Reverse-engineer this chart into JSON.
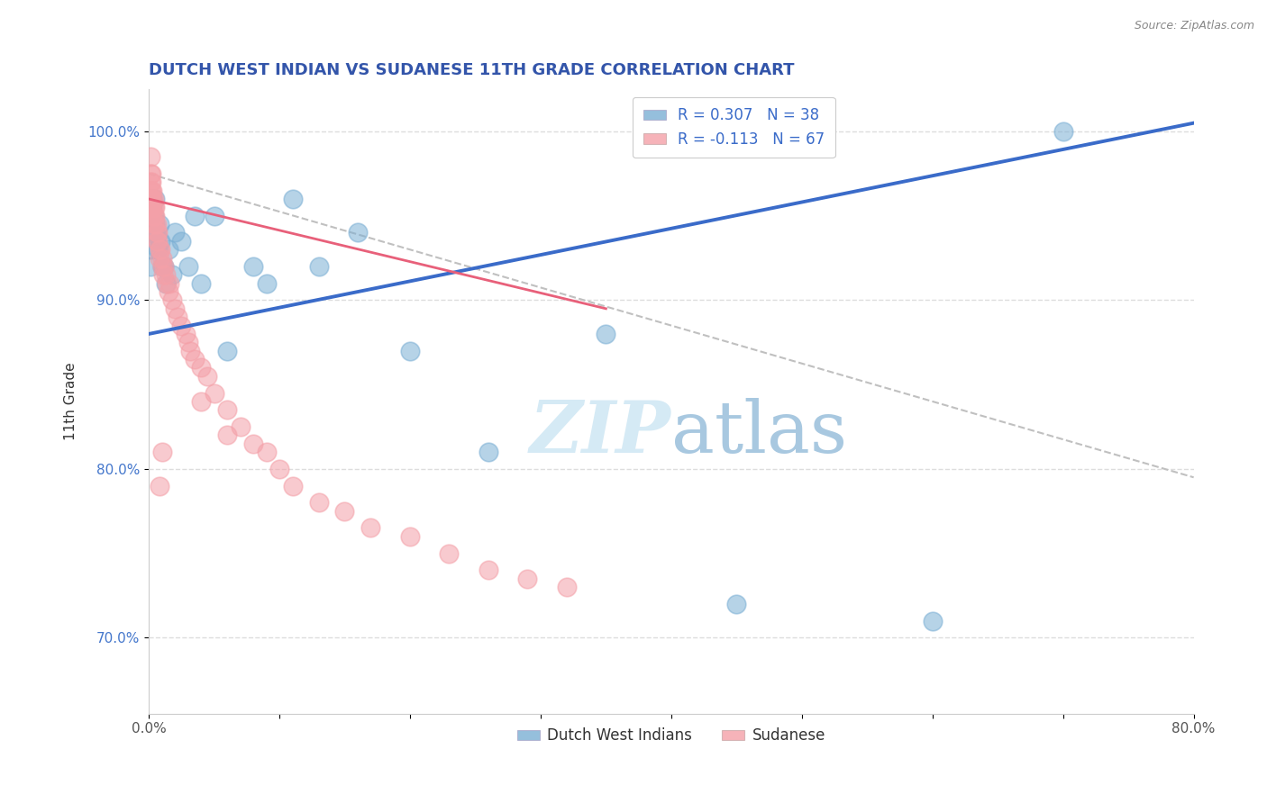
{
  "title": "DUTCH WEST INDIAN VS SUDANESE 11TH GRADE CORRELATION CHART",
  "source_text": "Source: ZipAtlas.com",
  "ylabel": "11th Grade",
  "xlim": [
    0.0,
    0.8
  ],
  "ylim": [
    0.655,
    1.025
  ],
  "xticks": [
    0.0,
    0.1,
    0.2,
    0.3,
    0.4,
    0.5,
    0.6,
    0.7,
    0.8
  ],
  "yticks": [
    0.7,
    0.8,
    0.9,
    1.0
  ],
  "yticklabels": [
    "70.0%",
    "80.0%",
    "90.0%",
    "100.0%"
  ],
  "legend_blue_label": "R = 0.307   N = 38",
  "legend_pink_label": "R = -0.113   N = 67",
  "legend_bottom_blue": "Dutch West Indians",
  "legend_bottom_pink": "Sudanese",
  "blue_color": "#7BAFD4",
  "pink_color": "#F4A0A8",
  "blue_trend_color": "#3A6BC9",
  "pink_trend_color": "#E8607A",
  "gray_dash_color": "#C0C0C0",
  "watermark_color": "#D5EAF5",
  "background_color": "#FFFFFF",
  "grid_color": "#DDDDDD",
  "title_color": "#3355AA",
  "yaxis_color": "#4477CC",
  "blue_x": [
    0.001,
    0.001,
    0.002,
    0.002,
    0.003,
    0.003,
    0.004,
    0.004,
    0.005,
    0.005,
    0.005,
    0.006,
    0.007,
    0.008,
    0.009,
    0.01,
    0.012,
    0.013,
    0.015,
    0.018,
    0.02,
    0.025,
    0.03,
    0.035,
    0.04,
    0.05,
    0.06,
    0.08,
    0.09,
    0.11,
    0.13,
    0.16,
    0.2,
    0.26,
    0.35,
    0.45,
    0.6,
    0.7
  ],
  "blue_y": [
    0.93,
    0.92,
    0.96,
    0.955,
    0.96,
    0.955,
    0.95,
    0.945,
    0.96,
    0.945,
    0.94,
    0.938,
    0.93,
    0.945,
    0.935,
    0.92,
    0.92,
    0.91,
    0.93,
    0.915,
    0.94,
    0.935,
    0.92,
    0.95,
    0.91,
    0.95,
    0.87,
    0.92,
    0.91,
    0.96,
    0.92,
    0.94,
    0.87,
    0.81,
    0.88,
    0.72,
    0.71,
    1.0
  ],
  "pink_x": [
    0.001,
    0.001,
    0.001,
    0.001,
    0.001,
    0.001,
    0.002,
    0.002,
    0.002,
    0.002,
    0.002,
    0.003,
    0.003,
    0.003,
    0.003,
    0.004,
    0.004,
    0.004,
    0.004,
    0.005,
    0.005,
    0.005,
    0.006,
    0.006,
    0.006,
    0.007,
    0.007,
    0.008,
    0.008,
    0.009,
    0.01,
    0.01,
    0.011,
    0.012,
    0.013,
    0.014,
    0.015,
    0.016,
    0.018,
    0.02,
    0.022,
    0.025,
    0.028,
    0.03,
    0.032,
    0.035,
    0.04,
    0.045,
    0.05,
    0.06,
    0.07,
    0.08,
    0.09,
    0.1,
    0.11,
    0.13,
    0.15,
    0.17,
    0.2,
    0.23,
    0.26,
    0.29,
    0.32,
    0.04,
    0.06,
    0.01,
    0.008
  ],
  "pink_y": [
    0.985,
    0.975,
    0.97,
    0.965,
    0.96,
    0.955,
    0.975,
    0.97,
    0.965,
    0.96,
    0.955,
    0.965,
    0.96,
    0.955,
    0.95,
    0.96,
    0.955,
    0.95,
    0.945,
    0.955,
    0.95,
    0.945,
    0.945,
    0.94,
    0.935,
    0.94,
    0.935,
    0.93,
    0.925,
    0.93,
    0.925,
    0.92,
    0.915,
    0.92,
    0.915,
    0.91,
    0.905,
    0.91,
    0.9,
    0.895,
    0.89,
    0.885,
    0.88,
    0.875,
    0.87,
    0.865,
    0.86,
    0.855,
    0.845,
    0.835,
    0.825,
    0.815,
    0.81,
    0.8,
    0.79,
    0.78,
    0.775,
    0.765,
    0.76,
    0.75,
    0.74,
    0.735,
    0.73,
    0.84,
    0.82,
    0.81,
    0.79
  ],
  "blue_trend_x0": 0.0,
  "blue_trend_y0": 0.88,
  "blue_trend_x1": 0.8,
  "blue_trend_y1": 1.005,
  "pink_trend_x0": 0.0,
  "pink_trend_y0": 0.96,
  "pink_trend_x1": 0.35,
  "pink_trend_y1": 0.895,
  "gray_trend_x0": 0.0,
  "gray_trend_y0": 0.975,
  "gray_trend_x1": 0.8,
  "gray_trend_y1": 0.795
}
